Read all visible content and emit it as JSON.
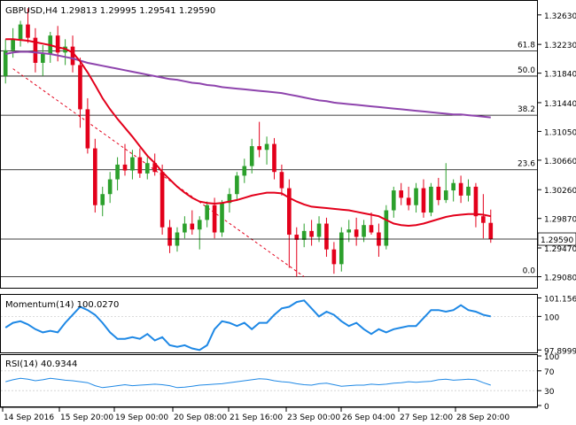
{
  "colors": {
    "background": "#ffffff",
    "axis": "#000000",
    "grid": "#cfcfcf",
    "bull": "#2ca02c",
    "bear": "#e3001b",
    "sma_fast": "#e3001b",
    "sma_slow": "#8e44ad",
    "indicator_line": "#1e88e5",
    "dashed_trend": "#e3001b",
    "price_label_bg": "#ffffff"
  },
  "chart_data": [
    {
      "type": "candlestick",
      "title": "GBPUSD,H4  1.29813 1.29995 1.29541 1.29590",
      "symbol": "GBPUSD",
      "timeframe": "H4",
      "ohlc_header": {
        "open": "1.29813",
        "high": "1.29995",
        "low": "1.29541",
        "close": "1.29590"
      },
      "ylim": [
        1.2893,
        1.3282
      ],
      "y_ticks": [
        "1.32630",
        "1.32230",
        "1.31840",
        "1.31440",
        "1.31050",
        "1.30660",
        "1.30260",
        "1.29870",
        "1.29470",
        "1.29080"
      ],
      "y_tick_values": [
        1.3263,
        1.3223,
        1.3184,
        1.3144,
        1.3105,
        1.3066,
        1.3026,
        1.2987,
        1.2947,
        1.2908
      ],
      "current_price_label": "1.29590",
      "current_price": 1.2959,
      "fib_levels": [
        {
          "label": "61.8",
          "value": 1.3214
        },
        {
          "label": "50.0",
          "value": 1.318
        },
        {
          "label": "38.2",
          "value": 1.3127
        },
        {
          "label": "23.6",
          "value": 1.3053
        },
        {
          "label": "0.0",
          "value": 1.2908
        }
      ],
      "candles": [
        {
          "o": 1.318,
          "h": 1.323,
          "l": 1.317,
          "c": 1.3215
        },
        {
          "o": 1.3215,
          "h": 1.3245,
          "l": 1.3205,
          "c": 1.323
        },
        {
          "o": 1.323,
          "h": 1.3255,
          "l": 1.322,
          "c": 1.325
        },
        {
          "o": 1.325,
          "h": 1.3272,
          "l": 1.3225,
          "c": 1.3232
        },
        {
          "o": 1.3232,
          "h": 1.3245,
          "l": 1.3185,
          "c": 1.3198
        },
        {
          "o": 1.3198,
          "h": 1.3222,
          "l": 1.318,
          "c": 1.321
        },
        {
          "o": 1.321,
          "h": 1.324,
          "l": 1.3198,
          "c": 1.3235
        },
        {
          "o": 1.3235,
          "h": 1.3248,
          "l": 1.32,
          "c": 1.3212
        },
        {
          "o": 1.3212,
          "h": 1.323,
          "l": 1.3195,
          "c": 1.322
        },
        {
          "o": 1.322,
          "h": 1.3235,
          "l": 1.3185,
          "c": 1.3195
        },
        {
          "o": 1.3195,
          "h": 1.3205,
          "l": 1.311,
          "c": 1.3135
        },
        {
          "o": 1.3135,
          "h": 1.315,
          "l": 1.3075,
          "c": 1.3082
        },
        {
          "o": 1.3082,
          "h": 1.3095,
          "l": 1.2995,
          "c": 1.3005
        },
        {
          "o": 1.3005,
          "h": 1.303,
          "l": 1.299,
          "c": 1.302
        },
        {
          "o": 1.302,
          "h": 1.305,
          "l": 1.3008,
          "c": 1.304
        },
        {
          "o": 1.304,
          "h": 1.307,
          "l": 1.3025,
          "c": 1.306
        },
        {
          "o": 1.306,
          "h": 1.3088,
          "l": 1.3045,
          "c": 1.3052
        },
        {
          "o": 1.3052,
          "h": 1.308,
          "l": 1.304,
          "c": 1.307
        },
        {
          "o": 1.307,
          "h": 1.3082,
          "l": 1.3042,
          "c": 1.3048
        },
        {
          "o": 1.3048,
          "h": 1.307,
          "l": 1.304,
          "c": 1.3062
        },
        {
          "o": 1.3062,
          "h": 1.3075,
          "l": 1.3045,
          "c": 1.305
        },
        {
          "o": 1.305,
          "h": 1.306,
          "l": 1.2965,
          "c": 1.2975
        },
        {
          "o": 1.2975,
          "h": 1.2985,
          "l": 1.294,
          "c": 1.295
        },
        {
          "o": 1.295,
          "h": 1.2975,
          "l": 1.2942,
          "c": 1.2968
        },
        {
          "o": 1.2968,
          "h": 1.299,
          "l": 1.296,
          "c": 1.298
        },
        {
          "o": 1.298,
          "h": 1.2998,
          "l": 1.2965,
          "c": 1.2972
        },
        {
          "o": 1.2972,
          "h": 1.299,
          "l": 1.2945,
          "c": 1.2985
        },
        {
          "o": 1.2985,
          "h": 1.301,
          "l": 1.2975,
          "c": 1.3005
        },
        {
          "o": 1.3005,
          "h": 1.3015,
          "l": 1.296,
          "c": 1.2968
        },
        {
          "o": 1.2968,
          "h": 1.3012,
          "l": 1.2962,
          "c": 1.3008
        },
        {
          "o": 1.3008,
          "h": 1.3028,
          "l": 1.2995,
          "c": 1.302
        },
        {
          "o": 1.302,
          "h": 1.305,
          "l": 1.3012,
          "c": 1.3045
        },
        {
          "o": 1.3045,
          "h": 1.3068,
          "l": 1.3035,
          "c": 1.3058
        },
        {
          "o": 1.3058,
          "h": 1.3095,
          "l": 1.3048,
          "c": 1.3085
        },
        {
          "o": 1.3085,
          "h": 1.3118,
          "l": 1.307,
          "c": 1.308
        },
        {
          "o": 1.308,
          "h": 1.3098,
          "l": 1.306,
          "c": 1.3088
        },
        {
          "o": 1.3088,
          "h": 1.3096,
          "l": 1.304,
          "c": 1.305
        },
        {
          "o": 1.305,
          "h": 1.306,
          "l": 1.3018,
          "c": 1.3028
        },
        {
          "o": 1.3028,
          "h": 1.304,
          "l": 1.292,
          "c": 1.2965
        },
        {
          "o": 1.2965,
          "h": 1.2975,
          "l": 1.2908,
          "c": 1.2958
        },
        {
          "o": 1.2958,
          "h": 1.298,
          "l": 1.2948,
          "c": 1.297
        },
        {
          "o": 1.297,
          "h": 1.2985,
          "l": 1.295,
          "c": 1.2962
        },
        {
          "o": 1.2962,
          "h": 1.299,
          "l": 1.2955,
          "c": 1.298
        },
        {
          "o": 1.298,
          "h": 1.2988,
          "l": 1.2935,
          "c": 1.2945
        },
        {
          "o": 1.2945,
          "h": 1.2955,
          "l": 1.2912,
          "c": 1.2925
        },
        {
          "o": 1.2925,
          "h": 1.2975,
          "l": 1.2915,
          "c": 1.2968
        },
        {
          "o": 1.2968,
          "h": 1.2985,
          "l": 1.2955,
          "c": 1.2972
        },
        {
          "o": 1.2972,
          "h": 1.2988,
          "l": 1.295,
          "c": 1.2962
        },
        {
          "o": 1.2962,
          "h": 1.2985,
          "l": 1.2955,
          "c": 1.2978
        },
        {
          "o": 1.2978,
          "h": 1.2995,
          "l": 1.2965,
          "c": 1.2968
        },
        {
          "o": 1.2968,
          "h": 1.298,
          "l": 1.2935,
          "c": 1.295
        },
        {
          "o": 1.295,
          "h": 1.3005,
          "l": 1.2945,
          "c": 1.2998
        },
        {
          "o": 1.2998,
          "h": 1.303,
          "l": 1.2988,
          "c": 1.3025
        },
        {
          "o": 1.3025,
          "h": 1.3035,
          "l": 1.3005,
          "c": 1.3015
        },
        {
          "o": 1.3015,
          "h": 1.303,
          "l": 1.2998,
          "c": 1.3005
        },
        {
          "o": 1.3005,
          "h": 1.3035,
          "l": 1.2995,
          "c": 1.3028
        },
        {
          "o": 1.3028,
          "h": 1.304,
          "l": 1.2988,
          "c": 1.2995
        },
        {
          "o": 1.2995,
          "h": 1.3035,
          "l": 1.299,
          "c": 1.303
        },
        {
          "o": 1.303,
          "h": 1.3042,
          "l": 1.3005,
          "c": 1.3012
        },
        {
          "o": 1.3012,
          "h": 1.3062,
          "l": 1.3008,
          "c": 1.3025
        },
        {
          "o": 1.3025,
          "h": 1.304,
          "l": 1.301,
          "c": 1.3035
        },
        {
          "o": 1.3035,
          "h": 1.3045,
          "l": 1.3008,
          "c": 1.3018
        },
        {
          "o": 1.3018,
          "h": 1.304,
          "l": 1.301,
          "c": 1.303
        },
        {
          "o": 1.303,
          "h": 1.3035,
          "l": 1.2975,
          "c": 1.299
        },
        {
          "o": 1.299,
          "h": 1.302,
          "l": 1.296,
          "c": 1.2981
        },
        {
          "o": 1.2981,
          "h": 1.2999,
          "l": 1.2954,
          "c": 1.2959
        }
      ],
      "sma_fast": [
        1.323,
        1.323,
        1.3229,
        1.3228,
        1.3226,
        1.3224,
        1.3222,
        1.3219,
        1.3217,
        1.3212,
        1.32,
        1.3185,
        1.3168,
        1.315,
        1.3135,
        1.3122,
        1.311,
        1.3098,
        1.3085,
        1.3072,
        1.3062,
        1.305,
        1.304,
        1.303,
        1.3022,
        1.3015,
        1.301,
        1.3008,
        1.3007,
        1.3008,
        1.301,
        1.3012,
        1.3015,
        1.3018,
        1.302,
        1.3022,
        1.3022,
        1.3021,
        1.3015,
        1.301,
        1.3006,
        1.3003,
        1.3002,
        1.3001,
        1.3,
        1.2999,
        1.2998,
        1.2996,
        1.2994,
        1.2992,
        1.299,
        1.2985,
        1.298,
        1.2978,
        1.2977,
        1.2978,
        1.298,
        1.2983,
        1.2986,
        1.2989,
        1.2991,
        1.2992,
        1.2993,
        1.2993,
        1.2992,
        1.299
      ],
      "sma_slow": [
        1.321,
        1.3212,
        1.3213,
        1.3213,
        1.3212,
        1.3211,
        1.321,
        1.3208,
        1.3206,
        1.3204,
        1.3201,
        1.3198,
        1.3196,
        1.3194,
        1.3192,
        1.319,
        1.3188,
        1.3186,
        1.3184,
        1.3182,
        1.318,
        1.3178,
        1.3176,
        1.3175,
        1.3173,
        1.3171,
        1.317,
        1.3168,
        1.3167,
        1.3165,
        1.3164,
        1.3163,
        1.3162,
        1.3161,
        1.316,
        1.3159,
        1.3158,
        1.3157,
        1.3155,
        1.3153,
        1.3151,
        1.3149,
        1.3147,
        1.3146,
        1.3144,
        1.3143,
        1.3142,
        1.3141,
        1.314,
        1.3139,
        1.3138,
        1.3137,
        1.3136,
        1.3135,
        1.3134,
        1.3133,
        1.3132,
        1.3131,
        1.313,
        1.3129,
        1.3128,
        1.3128,
        1.3127,
        1.3126,
        1.3125,
        1.3124
      ],
      "sma_slow_start_index": 12,
      "sma_slow_start_value": 1.3204,
      "trendline": {
        "from_index": 1,
        "from_value": 1.319,
        "to_index": 40,
        "to_value": 1.2908
      }
    },
    {
      "type": "line",
      "title": "Momentum(14) 100.0270",
      "ylim": [
        97.75,
        101.35
      ],
      "y_ticks": [
        "101.1567",
        "100",
        "97.8999"
      ],
      "y_tick_values": [
        101.1567,
        100.0,
        97.8999
      ],
      "values": [
        99.3,
        99.6,
        99.7,
        99.5,
        99.2,
        99.0,
        99.1,
        99.0,
        99.6,
        100.1,
        100.6,
        100.4,
        100.1,
        99.6,
        99.0,
        98.6,
        98.6,
        98.7,
        98.6,
        98.9,
        98.5,
        98.7,
        98.2,
        98.1,
        98.2,
        98.0,
        97.9,
        98.2,
        99.2,
        99.7,
        99.6,
        99.4,
        99.6,
        99.2,
        99.6,
        99.6,
        100.1,
        100.5,
        100.6,
        100.9,
        101.0,
        100.5,
        100.0,
        100.3,
        100.1,
        99.7,
        99.4,
        99.6,
        99.2,
        98.9,
        99.2,
        99.0,
        99.2,
        99.3,
        99.4,
        99.4,
        99.9,
        100.4,
        100.4,
        100.3,
        100.4,
        100.7,
        100.4,
        100.3,
        100.1,
        100.0
      ]
    },
    {
      "type": "line",
      "title": "RSI(14) 40.9344",
      "ylim": [
        0,
        100
      ],
      "y_ticks": [
        "100",
        "70",
        "30",
        "0"
      ],
      "y_tick_values": [
        100,
        70,
        30,
        0
      ],
      "values": [
        48,
        52,
        55,
        53,
        50,
        52,
        55,
        53,
        51,
        50,
        48,
        46,
        40,
        36,
        38,
        40,
        42,
        40,
        41,
        42,
        43,
        42,
        40,
        36,
        37,
        39,
        41,
        42,
        43,
        44,
        46,
        48,
        50,
        52,
        54,
        53,
        50,
        48,
        47,
        44,
        42,
        41,
        44,
        45,
        42,
        39,
        40,
        41,
        41,
        43,
        42,
        43,
        45,
        46,
        48,
        47,
        48,
        49,
        52,
        53,
        51,
        52,
        53,
        52,
        46,
        41
      ]
    }
  ],
  "x_axis": {
    "labels": [
      "14 Sep 2016",
      "15 Sep 20:00",
      "19 Sep 00:00",
      "20 Sep 08:00",
      "21 Sep 16:00",
      "23 Sep 00:00",
      "26 Sep 04:00",
      "27 Sep 12:00",
      "28 Sep 20:00"
    ],
    "label_index": [
      0,
      10,
      20,
      30,
      40,
      49,
      57,
      64,
      73
    ]
  }
}
